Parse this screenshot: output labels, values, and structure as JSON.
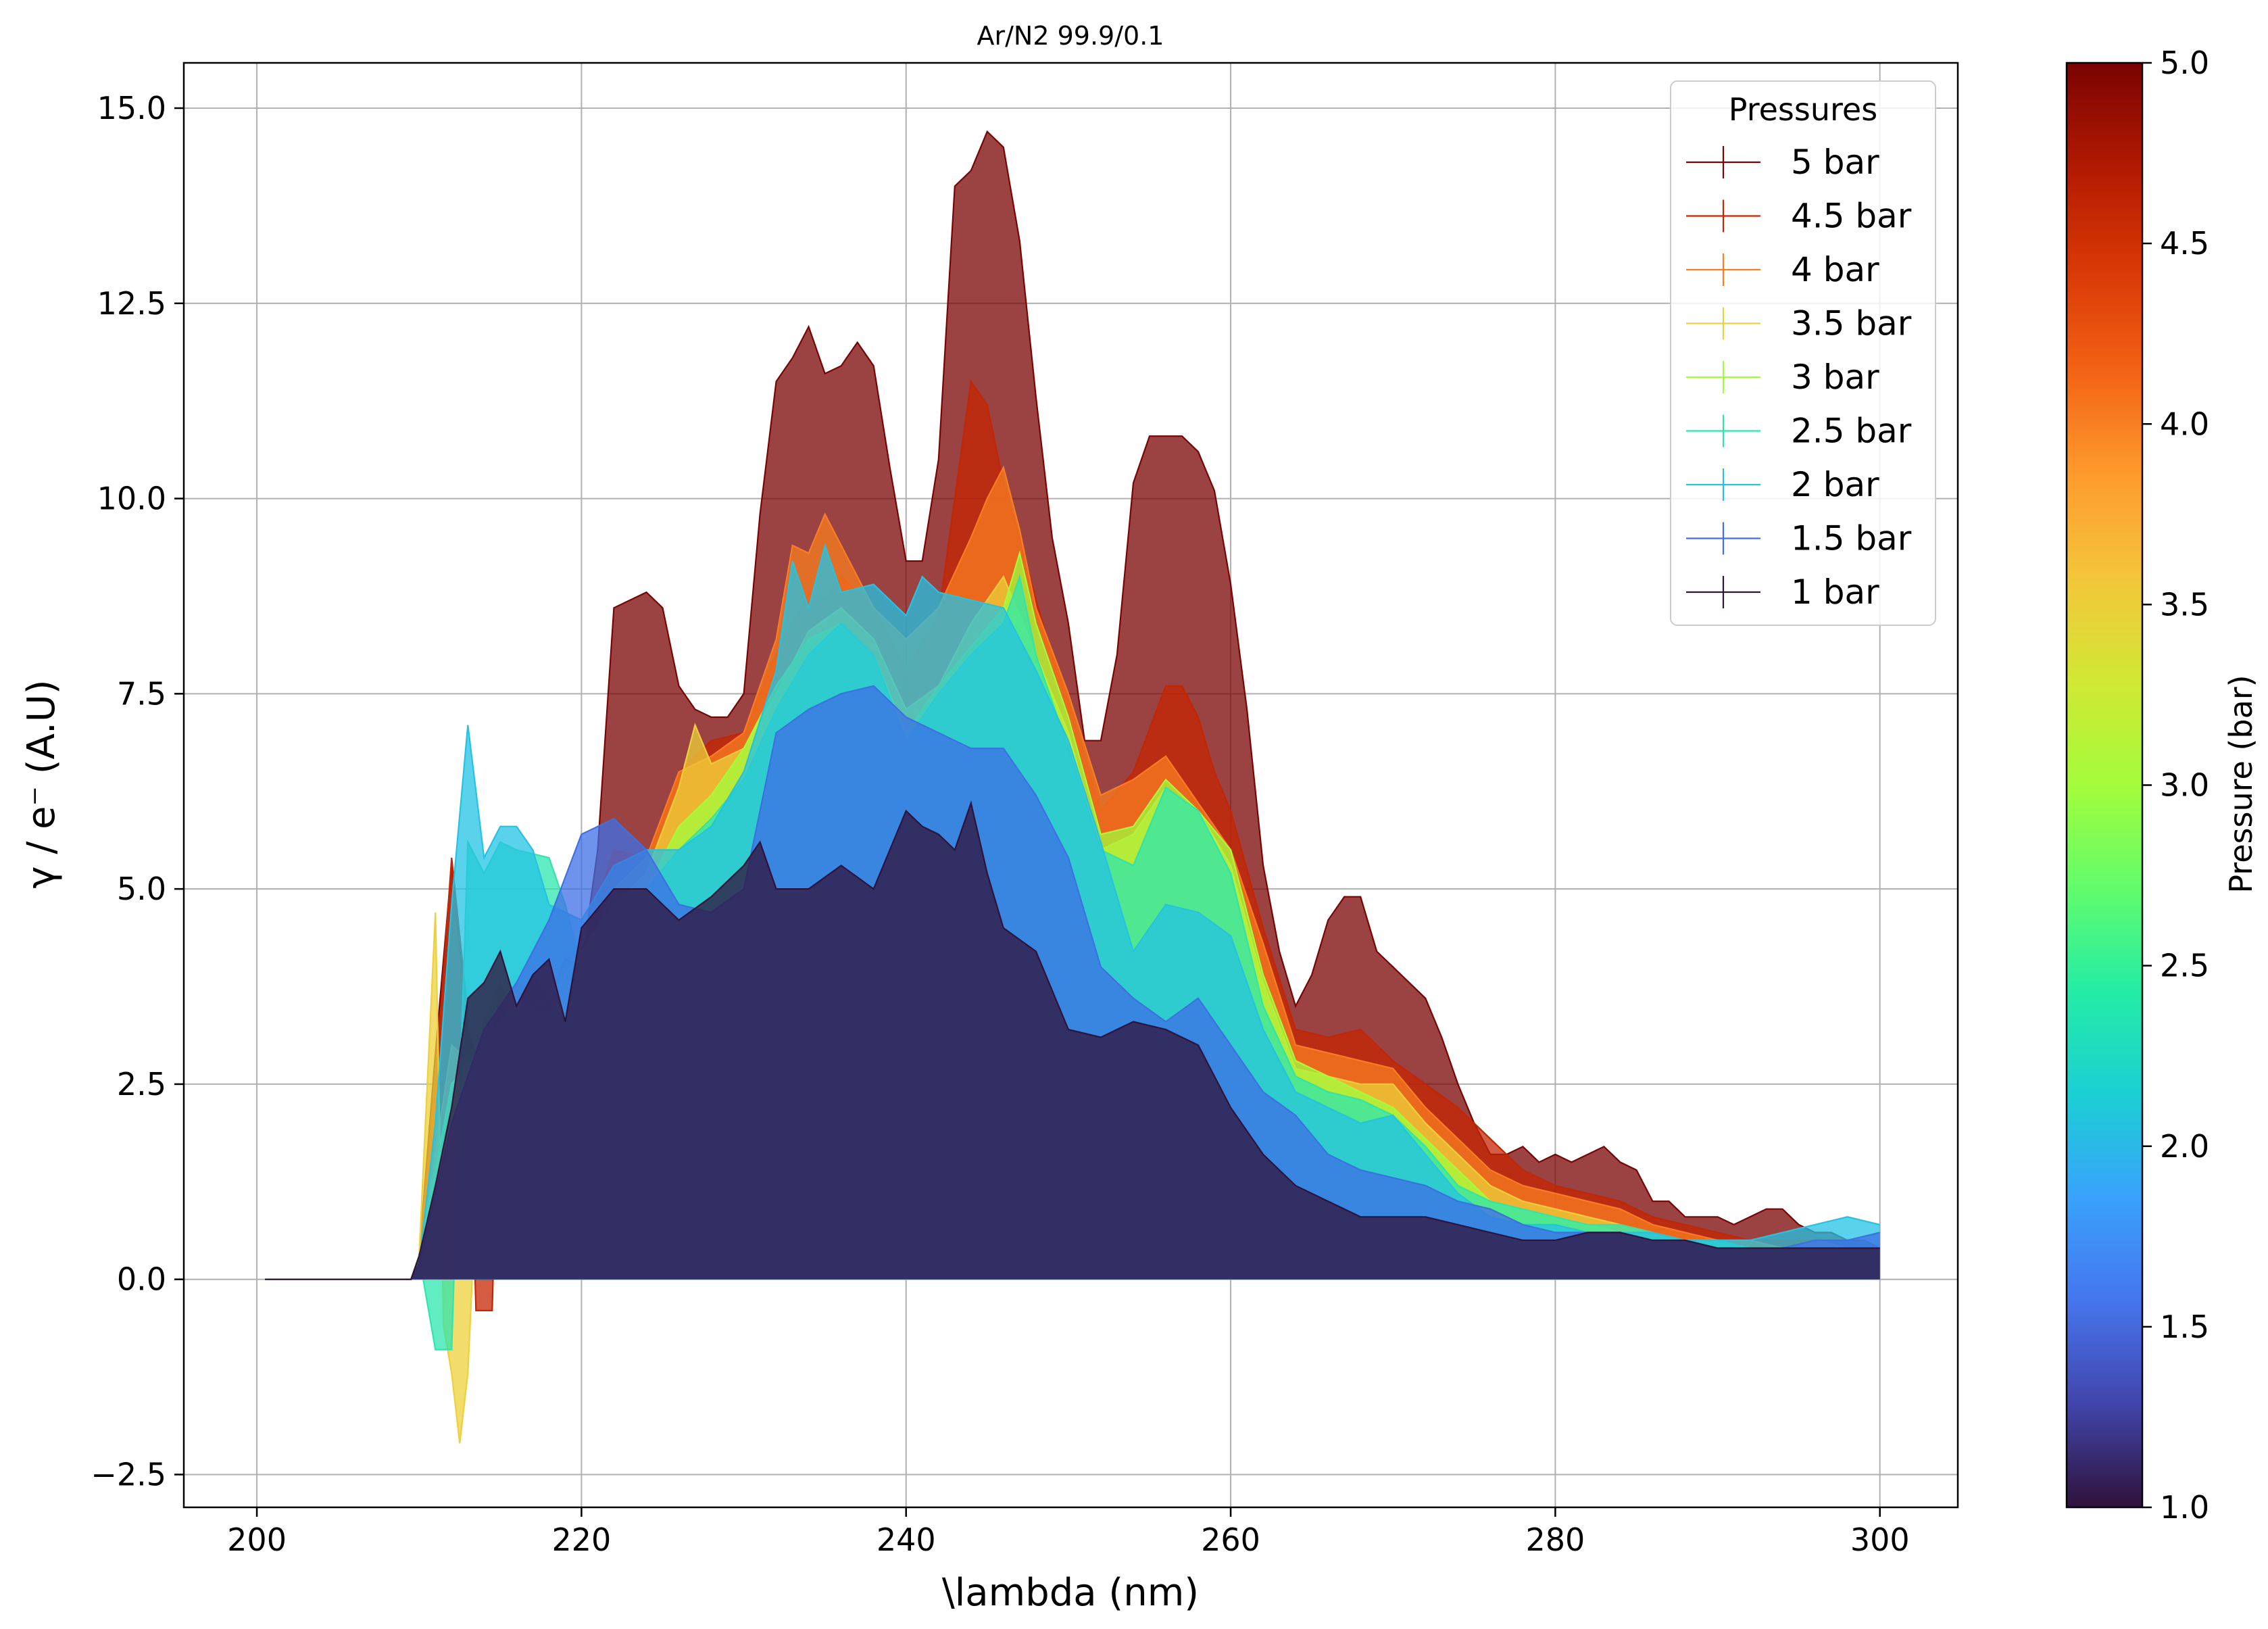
{
  "chart_data": {
    "type": "area",
    "title": "Ar/N2 99.9/0.1",
    "xlabel": "\\lambda (nm)",
    "ylabel": "γ / e⁻ (A.U)",
    "xlim": [
      195.5,
      304.8
    ],
    "ylim": [
      -2.92,
      15.58
    ],
    "xticks": [
      200,
      220,
      240,
      260,
      280,
      300
    ],
    "yticks": [
      -2.5,
      0.0,
      2.5,
      5.0,
      7.5,
      10.0,
      12.5,
      15.0
    ],
    "xtick_labels": [
      "200",
      "220",
      "240",
      "260",
      "280",
      "300"
    ],
    "ytick_labels": [
      "−2.5",
      "0.0",
      "2.5",
      "5.0",
      "7.5",
      "10.0",
      "12.5",
      "15.0"
    ],
    "grid": true,
    "legend": {
      "title": "Pressures",
      "position": "upper right"
    },
    "colorbar": {
      "label": "Pressure (bar)",
      "range": [
        1.0,
        5.0
      ],
      "ticks": [
        1.0,
        1.5,
        2.0,
        2.5,
        3.0,
        3.5,
        4.0,
        4.5,
        5.0
      ],
      "tick_labels": [
        "1.0",
        "1.5",
        "2.0",
        "2.5",
        "3.0",
        "3.5",
        "4.0",
        "4.5",
        "5.0"
      ],
      "colormap": [
        "#30123b",
        "#4145ab",
        "#4675ed",
        "#39a2fc",
        "#1bcfd4",
        "#24eca6",
        "#61fc6c",
        "#a4fc3b",
        "#d1e834",
        "#f3c63a",
        "#fe9b2d",
        "#f36315",
        "#d93806",
        "#b11901",
        "#7a0402"
      ]
    },
    "series": [
      {
        "name": "5 bar",
        "pressure": 5.0,
        "color": "#7a0403",
        "x": [
          200.5,
          209.5,
          210,
          211,
          212,
          213,
          214,
          215,
          216,
          217,
          218,
          219,
          220,
          221,
          222,
          223,
          224,
          225,
          226,
          227,
          228,
          229,
          230,
          231,
          232,
          233,
          234,
          235,
          236,
          237,
          238,
          239,
          240,
          241,
          242,
          243,
          244,
          245,
          246,
          247,
          248,
          249,
          250,
          251,
          252,
          253,
          254,
          255,
          256,
          257,
          258,
          259,
          260,
          261,
          262,
          263,
          264,
          265,
          266,
          267,
          268,
          269,
          270,
          271,
          272,
          273,
          274,
          275,
          276,
          277,
          278,
          279,
          280,
          281,
          282,
          283,
          284,
          285,
          286,
          287,
          288,
          289,
          290,
          291,
          292,
          293,
          294,
          295,
          296,
          297,
          298,
          299,
          300
        ],
        "y": [
          0,
          0,
          0.3,
          2.9,
          5.3,
          3.2,
          2.5,
          3.8,
          3.3,
          3.9,
          3.6,
          4.1,
          4.0,
          5.5,
          8.6,
          8.7,
          8.8,
          8.6,
          7.6,
          7.3,
          7.2,
          7.2,
          7.5,
          9.8,
          11.5,
          11.8,
          12.2,
          11.6,
          11.7,
          12.0,
          11.7,
          10.4,
          9.2,
          9.2,
          10.5,
          14.0,
          14.2,
          14.7,
          14.5,
          13.3,
          11.3,
          9.5,
          8.4,
          6.9,
          6.9,
          8.0,
          10.2,
          10.8,
          10.8,
          10.8,
          10.6,
          10.1,
          8.9,
          7.3,
          5.3,
          4.2,
          3.5,
          3.9,
          4.6,
          4.9,
          4.9,
          4.2,
          4.0,
          3.8,
          3.6,
          3.1,
          2.5,
          2.0,
          1.6,
          1.6,
          1.7,
          1.5,
          1.6,
          1.5,
          1.6,
          1.7,
          1.5,
          1.4,
          1.0,
          1.0,
          0.8,
          0.8,
          0.8,
          0.7,
          0.8,
          0.9,
          0.9,
          0.7,
          0.6,
          0.6,
          0.5,
          0.5,
          0.4
        ]
      },
      {
        "name": "4.5 bar",
        "pressure": 4.5,
        "color": "#c42503",
        "x": [
          200.5,
          209.5,
          210,
          211,
          212,
          213,
          213.5,
          214.5,
          215,
          216,
          218,
          220,
          222,
          224,
          226,
          228,
          230,
          232,
          234,
          235,
          236,
          238,
          240,
          242,
          243,
          244,
          245,
          246,
          247,
          248,
          249,
          250,
          252,
          254,
          256,
          257,
          258,
          259,
          260,
          262,
          264,
          266,
          268,
          270,
          272,
          274,
          276,
          278,
          280,
          282,
          284,
          286,
          288,
          290,
          292,
          294,
          296,
          298,
          300
        ],
        "y": [
          0,
          0,
          0.3,
          2.5,
          5.4,
          3.4,
          -0.4,
          -0.4,
          3.5,
          3.8,
          3.6,
          4.2,
          5.5,
          5.4,
          6.5,
          6.9,
          7.0,
          8.0,
          8.8,
          8.7,
          9.0,
          8.6,
          7.8,
          8.5,
          10.0,
          11.5,
          11.2,
          10.2,
          9.5,
          8.7,
          8.0,
          7.4,
          6.0,
          6.5,
          7.6,
          7.6,
          7.2,
          6.5,
          6.0,
          4.5,
          3.2,
          3.1,
          3.2,
          2.8,
          2.5,
          2.2,
          1.8,
          1.4,
          1.2,
          1.1,
          1.0,
          0.8,
          0.7,
          0.6,
          0.5,
          0.5,
          0.5,
          0.4,
          0.4
        ]
      },
      {
        "name": "4 bar",
        "pressure": 4.0,
        "color": "#fa7d20",
        "x": [
          200.5,
          209.5,
          210,
          212,
          214,
          216,
          218,
          220,
          222,
          224,
          226,
          228,
          230,
          232,
          233,
          234,
          235,
          236,
          238,
          240,
          242,
          244,
          245,
          246,
          247,
          248,
          250,
          252,
          254,
          256,
          258,
          260,
          262,
          264,
          266,
          268,
          270,
          272,
          274,
          276,
          278,
          280,
          282,
          284,
          286,
          288,
          290,
          292,
          294,
          296,
          298,
          300
        ],
        "y": [
          0,
          0,
          0.2,
          3.0,
          2.6,
          3.5,
          3.4,
          4.0,
          5.0,
          5.4,
          6.5,
          6.7,
          7.0,
          8.2,
          9.4,
          9.3,
          9.8,
          9.4,
          8.6,
          8.2,
          8.6,
          9.5,
          10.0,
          10.4,
          9.6,
          8.6,
          7.5,
          6.2,
          6.4,
          6.7,
          6.1,
          5.5,
          4.3,
          3.0,
          2.9,
          2.8,
          2.7,
          2.2,
          1.8,
          1.4,
          1.2,
          1.1,
          1.0,
          0.9,
          0.7,
          0.6,
          0.5,
          0.5,
          0.4,
          0.5,
          0.4,
          0.4
        ]
      },
      {
        "name": "3.5 bar",
        "pressure": 3.5,
        "color": "#edd03a",
        "x": [
          200.5,
          209.5,
          210,
          211,
          211.5,
          212,
          212.5,
          213,
          214,
          215,
          216,
          218,
          220,
          222,
          224,
          226,
          227,
          228,
          230,
          232,
          234,
          236,
          238,
          240,
          242,
          244,
          246,
          248,
          250,
          252,
          254,
          256,
          258,
          260,
          262,
          264,
          266,
          268,
          270,
          272,
          274,
          276,
          278,
          280,
          282,
          284,
          286,
          288,
          290,
          292,
          294,
          296,
          298,
          300
        ],
        "y": [
          0,
          0,
          0.3,
          4.7,
          -0.6,
          -1.2,
          -2.1,
          -1.2,
          3.3,
          3.8,
          3.4,
          3.6,
          4.2,
          4.8,
          5.2,
          6.3,
          7.1,
          6.6,
          6.8,
          7.5,
          8.3,
          8.6,
          8.2,
          7.3,
          7.6,
          8.4,
          9.0,
          8.0,
          7.0,
          5.5,
          5.7,
          6.3,
          6.0,
          5.3,
          3.8,
          2.7,
          2.6,
          2.5,
          2.5,
          2.0,
          1.6,
          1.2,
          1.0,
          0.9,
          0.8,
          0.7,
          0.6,
          0.5,
          0.5,
          0.4,
          0.4,
          0.4,
          0.4,
          0.4
        ]
      },
      {
        "name": "3 bar",
        "pressure": 3.0,
        "color": "#a2fc3c",
        "x": [
          200.5,
          209.5,
          210,
          212,
          214,
          216,
          218,
          220,
          222,
          224,
          226,
          228,
          230,
          232,
          234,
          236,
          238,
          240,
          242,
          244,
          246,
          247,
          248,
          250,
          252,
          254,
          256,
          258,
          260,
          262,
          264,
          266,
          268,
          270,
          272,
          274,
          276,
          278,
          280,
          282,
          284,
          286,
          288,
          290,
          292,
          294,
          296,
          298,
          300
        ],
        "y": [
          0,
          0,
          0.3,
          2.5,
          3.0,
          3.6,
          3.2,
          3.8,
          4.4,
          5.0,
          5.8,
          6.2,
          6.8,
          7.6,
          8.2,
          8.4,
          8.0,
          7.0,
          7.6,
          8.1,
          8.6,
          9.3,
          8.4,
          7.2,
          5.7,
          5.8,
          6.4,
          6.0,
          5.5,
          3.9,
          2.8,
          2.6,
          2.4,
          2.2,
          1.8,
          1.4,
          1.0,
          0.9,
          0.8,
          0.7,
          0.6,
          0.5,
          0.5,
          0.4,
          0.4,
          0.4,
          0.4,
          0.4,
          0.4
        ]
      },
      {
        "name": "2.5 bar",
        "pressure": 2.5,
        "color": "#2ee5ae",
        "x": [
          200.5,
          209.5,
          210,
          211,
          212,
          213,
          214,
          215,
          216,
          218,
          219,
          220,
          222,
          224,
          226,
          228,
          230,
          232,
          234,
          236,
          238,
          240,
          242,
          244,
          246,
          247,
          248,
          250,
          252,
          254,
          256,
          258,
          260,
          262,
          264,
          266,
          268,
          270,
          272,
          274,
          276,
          278,
          280,
          282,
          284,
          286,
          288,
          290,
          292,
          294,
          296,
          298,
          300
        ],
        "y": [
          0,
          0,
          0.3,
          -0.9,
          -0.9,
          5.6,
          5.2,
          5.6,
          5.5,
          5.4,
          4.8,
          4.0,
          5.0,
          5.0,
          5.5,
          5.9,
          6.4,
          7.3,
          8.0,
          8.4,
          8.0,
          6.9,
          7.5,
          8.0,
          8.4,
          9.0,
          8.0,
          6.8,
          5.5,
          5.3,
          6.3,
          6.0,
          5.2,
          3.5,
          2.6,
          2.4,
          2.3,
          2.1,
          1.7,
          1.2,
          1.0,
          0.9,
          0.8,
          0.7,
          0.7,
          0.6,
          0.5,
          0.5,
          0.4,
          0.4,
          0.4,
          0.4,
          0.4
        ]
      },
      {
        "name": "2 bar",
        "pressure": 2.0,
        "color": "#23c3e4",
        "x": [
          200.5,
          209.5,
          210,
          211,
          212,
          213,
          214,
          215,
          216,
          217,
          218,
          220,
          222,
          224,
          226,
          228,
          230,
          232,
          233,
          234,
          235,
          236,
          238,
          240,
          241,
          242,
          244,
          246,
          248,
          250,
          252,
          254,
          256,
          258,
          260,
          262,
          264,
          266,
          268,
          270,
          272,
          274,
          276,
          278,
          280,
          282,
          284,
          286,
          288,
          290,
          292,
          294,
          296,
          298,
          300
        ],
        "y": [
          0,
          0,
          0.2,
          2.0,
          4.8,
          7.1,
          5.4,
          5.8,
          5.8,
          5.5,
          4.8,
          4.6,
          5.3,
          5.5,
          5.5,
          5.8,
          6.5,
          7.8,
          9.2,
          8.6,
          9.4,
          8.8,
          8.9,
          8.5,
          9.0,
          8.8,
          8.7,
          8.6,
          7.8,
          6.9,
          5.6,
          4.2,
          4.8,
          4.7,
          4.4,
          3.2,
          2.4,
          2.2,
          2.0,
          2.1,
          1.6,
          1.1,
          0.8,
          0.7,
          0.7,
          0.6,
          0.6,
          0.6,
          0.5,
          0.5,
          0.5,
          0.6,
          0.7,
          0.8,
          0.7
        ]
      },
      {
        "name": "1.5 bar",
        "pressure": 1.5,
        "color": "#3e6fe5",
        "x": [
          200.5,
          209.5,
          210,
          212,
          214,
          216,
          218,
          220,
          222,
          224,
          226,
          228,
          230,
          232,
          234,
          236,
          238,
          240,
          242,
          244,
          246,
          248,
          250,
          252,
          254,
          256,
          258,
          260,
          262,
          264,
          266,
          268,
          270,
          272,
          274,
          276,
          278,
          280,
          282,
          284,
          286,
          288,
          290,
          292,
          294,
          296,
          298,
          300
        ],
        "y": [
          0,
          0,
          0.2,
          2.0,
          3.2,
          3.8,
          4.6,
          5.7,
          5.9,
          5.5,
          4.8,
          4.7,
          5.0,
          7.0,
          7.3,
          7.5,
          7.6,
          7.2,
          7.0,
          6.8,
          6.8,
          6.2,
          5.4,
          4.0,
          3.6,
          3.3,
          3.6,
          3.0,
          2.4,
          2.1,
          1.6,
          1.4,
          1.3,
          1.2,
          1.0,
          0.9,
          0.7,
          0.6,
          0.6,
          0.6,
          0.5,
          0.5,
          0.4,
          0.4,
          0.4,
          0.5,
          0.5,
          0.6
        ]
      },
      {
        "name": "1 bar",
        "pressure": 1.0,
        "color": "#30123b",
        "x": [
          200.5,
          209.5,
          210,
          211,
          212,
          213,
          214,
          215,
          216,
          217,
          218,
          219,
          220,
          222,
          224,
          226,
          228,
          230,
          231,
          232,
          234,
          236,
          238,
          240,
          241,
          242,
          243,
          244,
          245,
          246,
          248,
          250,
          252,
          254,
          256,
          258,
          260,
          262,
          264,
          266,
          268,
          270,
          272,
          274,
          276,
          278,
          280,
          282,
          284,
          286,
          288,
          290,
          292,
          294,
          296,
          298,
          300
        ],
        "y": [
          0,
          0,
          0.3,
          1.2,
          2.2,
          3.6,
          3.8,
          4.2,
          3.5,
          3.9,
          4.1,
          3.3,
          4.5,
          5.0,
          5.0,
          4.6,
          4.9,
          5.3,
          5.6,
          5.0,
          5.0,
          5.3,
          5.0,
          6.0,
          5.8,
          5.7,
          5.5,
          6.1,
          5.2,
          4.5,
          4.2,
          3.2,
          3.1,
          3.3,
          3.2,
          3.0,
          2.2,
          1.6,
          1.2,
          1.0,
          0.8,
          0.8,
          0.8,
          0.7,
          0.6,
          0.5,
          0.5,
          0.6,
          0.6,
          0.5,
          0.5,
          0.4,
          0.4,
          0.4,
          0.4,
          0.4,
          0.4
        ]
      }
    ]
  }
}
